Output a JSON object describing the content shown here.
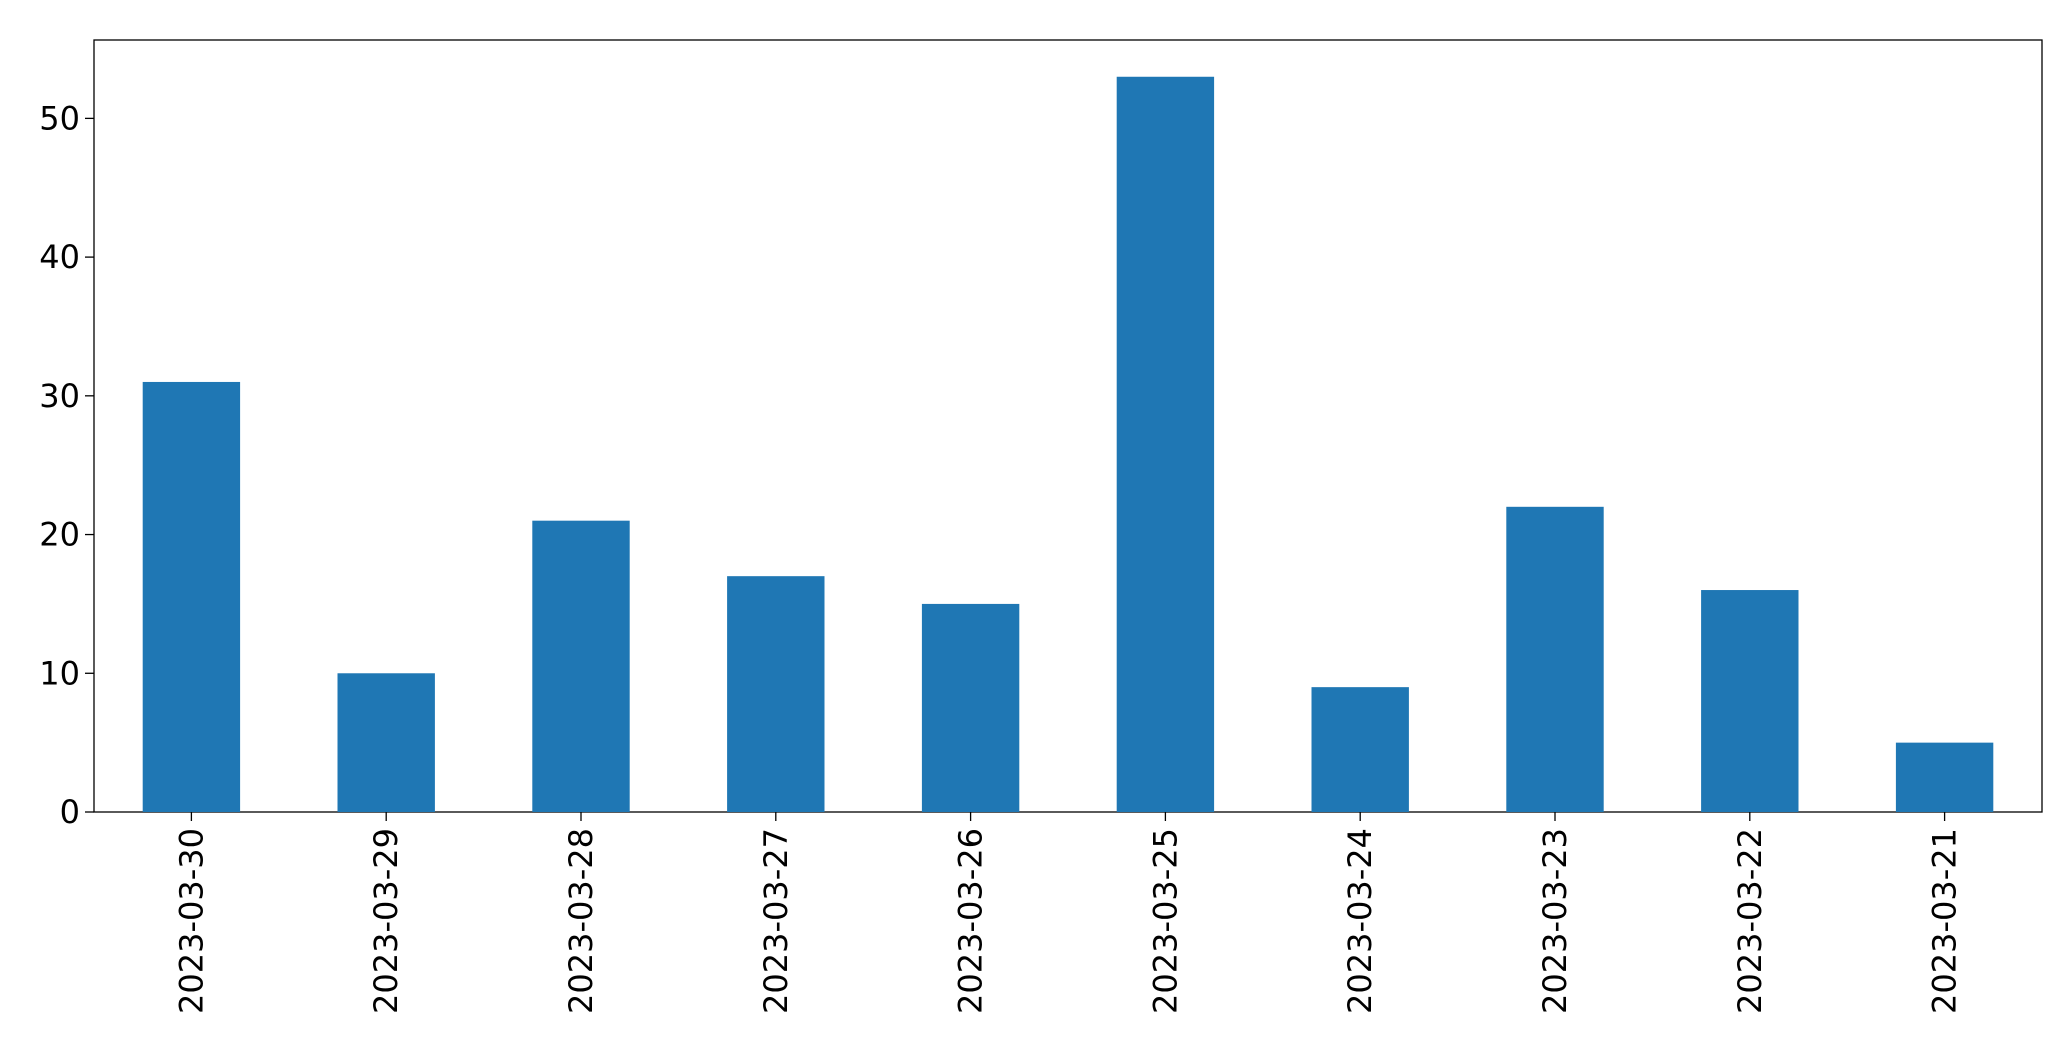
{
  "chart_data": {
    "type": "bar",
    "categories": [
      "2023-03-30",
      "2023-03-29",
      "2023-03-28",
      "2023-03-27",
      "2023-03-26",
      "2023-03-25",
      "2023-03-24",
      "2023-03-23",
      "2023-03-22",
      "2023-03-21"
    ],
    "values": [
      31,
      10,
      21,
      17,
      15,
      53,
      9,
      22,
      16,
      5
    ],
    "color": "#1f77b4",
    "ylim": [
      0,
      55.65
    ],
    "yticks": [
      0,
      10,
      20,
      30,
      40,
      50
    ],
    "grid": false
  }
}
